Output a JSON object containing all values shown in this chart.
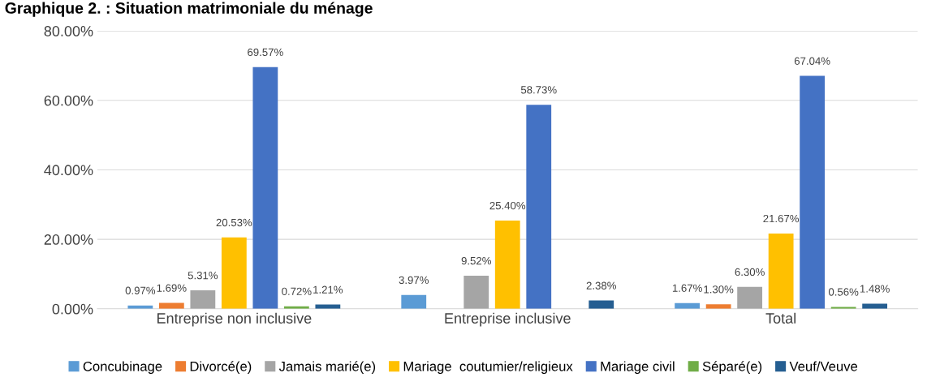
{
  "chart_data": {
    "type": "bar",
    "title": "Graphique 2. : Situation matrimoniale du ménage",
    "categories": [
      "Entreprise non inclusive",
      "Entreprise inclusive",
      "Total"
    ],
    "series": [
      {
        "name": "Concubinage",
        "color": "#5b9bd5",
        "values": [
          0.97,
          3.97,
          1.67
        ],
        "value_labels": [
          "0.97%",
          "3.97%",
          "1.67%"
        ]
      },
      {
        "name": "Divorcé(e)",
        "color": "#ed7d31",
        "values": [
          1.69,
          null,
          1.3
        ],
        "value_labels": [
          "1.69%",
          null,
          "1.30%"
        ]
      },
      {
        "name": "Jamais marié(e)",
        "color": "#a5a5a5",
        "values": [
          5.31,
          9.52,
          6.3
        ],
        "value_labels": [
          "5.31%",
          "9.52%",
          "6.30%"
        ]
      },
      {
        "name": "Mariage  coutumier/religieux",
        "color": "#ffc000",
        "values": [
          20.53,
          25.4,
          21.67
        ],
        "value_labels": [
          "20.53%",
          "25.40%",
          "21.67%"
        ]
      },
      {
        "name": "Mariage civil",
        "color": "#4472c4",
        "values": [
          69.57,
          58.73,
          67.04
        ],
        "value_labels": [
          "69.57%",
          "58.73%",
          "67.04%"
        ]
      },
      {
        "name": "Séparé(e)",
        "color": "#70ad47",
        "values": [
          0.72,
          null,
          0.56
        ],
        "value_labels": [
          "0.72%",
          null,
          "0.56%"
        ]
      },
      {
        "name": "Veuf/Veuve",
        "color": "#255e91",
        "values": [
          1.21,
          2.38,
          1.48
        ],
        "value_labels": [
          "1.21%",
          "2.38%",
          "1.48%"
        ]
      }
    ],
    "ylim": [
      0,
      80
    ],
    "yticks": [
      {
        "value": 0,
        "label": "0.00%"
      },
      {
        "value": 20,
        "label": "20.00%"
      },
      {
        "value": 40,
        "label": "40.00%"
      },
      {
        "value": 60,
        "label": "60.00%"
      },
      {
        "value": 80,
        "label": "80.00%"
      }
    ],
    "grid": "y",
    "legend": "bottom"
  }
}
